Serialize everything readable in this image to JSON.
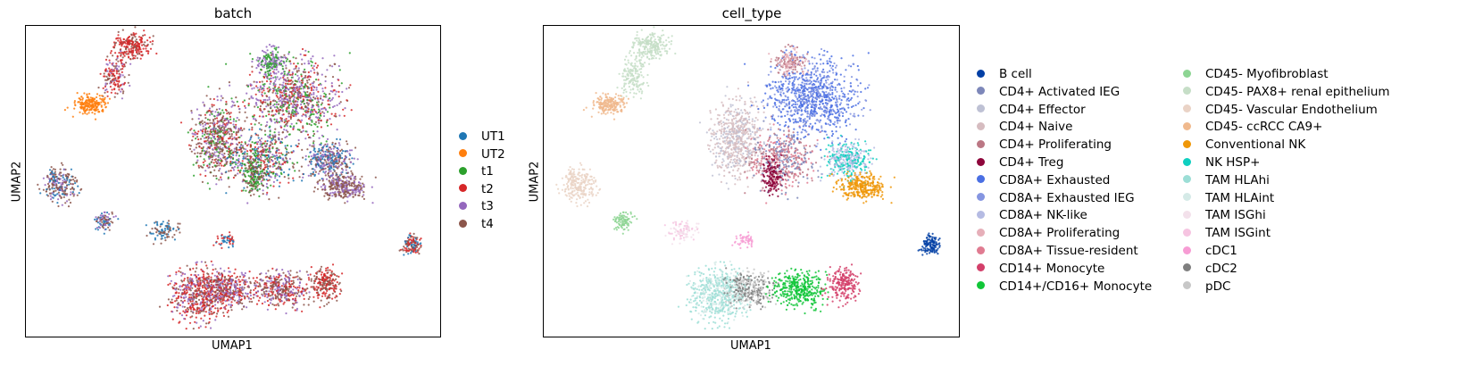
{
  "chart_data": [
    {
      "type": "scatter",
      "title": "batch",
      "xlabel": "UMAP1",
      "ylabel": "UMAP2",
      "grid": false,
      "legend_position": "right",
      "legend": [
        {
          "name": "UT1",
          "color": "#1f77b4"
        },
        {
          "name": "UT2",
          "color": "#ff7f0e"
        },
        {
          "name": "t1",
          "color": "#2ca02c"
        },
        {
          "name": "t2",
          "color": "#d62728"
        },
        {
          "name": "t3",
          "color": "#9467bd"
        },
        {
          "name": "t4",
          "color": "#8c564b"
        }
      ]
    },
    {
      "type": "scatter",
      "title": "cell_type",
      "xlabel": "UMAP1",
      "ylabel": "UMAP2",
      "grid": false,
      "legend_position": "right",
      "legend": [
        {
          "name": "B cell",
          "color": "#023fa5"
        },
        {
          "name": "CD4+ Activated IEG",
          "color": "#7d87b9"
        },
        {
          "name": "CD4+ Effector",
          "color": "#bec1d4"
        },
        {
          "name": "CD4+ Naive",
          "color": "#d6bcc0"
        },
        {
          "name": "CD4+ Proliferating",
          "color": "#bb7784"
        },
        {
          "name": "CD4+ Treg",
          "color": "#8e063b"
        },
        {
          "name": "CD8A+ Exhausted",
          "color": "#4a6fe3"
        },
        {
          "name": "CD8A+ Exhausted IEG",
          "color": "#8595e1"
        },
        {
          "name": "CD8A+ NK-like",
          "color": "#b5bbe3"
        },
        {
          "name": "CD8A+ Proliferating",
          "color": "#e6afb9"
        },
        {
          "name": "CD8A+ Tissue-resident",
          "color": "#e07b91"
        },
        {
          "name": "CD14+ Monocyte",
          "color": "#d33f6a"
        },
        {
          "name": "CD14+/CD16+ Monocyte",
          "color": "#11c638"
        },
        {
          "name": "CD45- Myofibroblast",
          "color": "#8dd593"
        },
        {
          "name": "CD45- PAX8+ renal epithelium",
          "color": "#c6dec7"
        },
        {
          "name": "CD45- Vascular Endothelium",
          "color": "#ead3c6"
        },
        {
          "name": "CD45- ccRCC CA9+",
          "color": "#f0b98d"
        },
        {
          "name": "Conventional NK",
          "color": "#ef9708"
        },
        {
          "name": "NK HSP+",
          "color": "#0fcfc0"
        },
        {
          "name": "TAM HLAhi",
          "color": "#9cded6"
        },
        {
          "name": "TAM HLAint",
          "color": "#d5eae7"
        },
        {
          "name": "TAM ISGhi",
          "color": "#f3e1eb"
        },
        {
          "name": "TAM ISGint",
          "color": "#f6c4e1"
        },
        {
          "name": "cDC1",
          "color": "#f79cd4"
        },
        {
          "name": "cDC2",
          "color": "#7f7f7f"
        },
        {
          "name": "pDC",
          "color": "#c7c7c7"
        }
      ]
    }
  ]
}
